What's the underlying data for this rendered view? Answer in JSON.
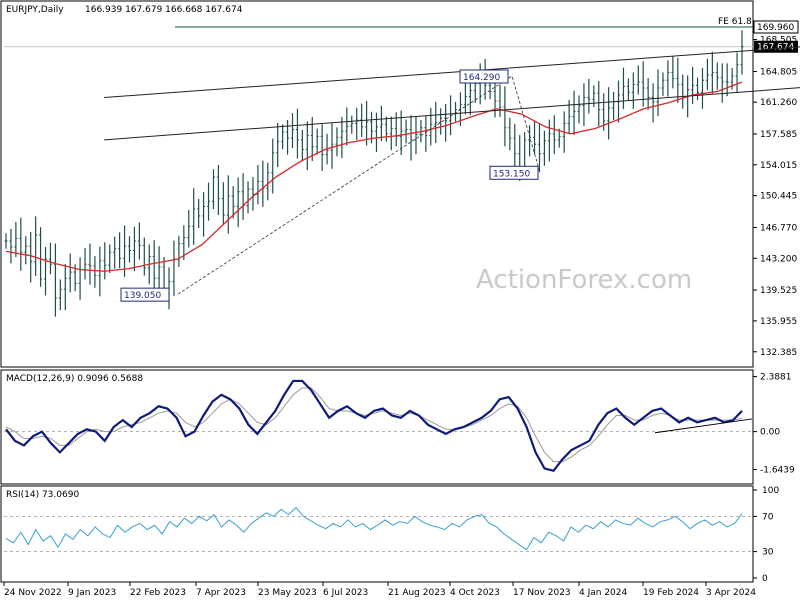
{
  "watermark": "ActionForex.com",
  "colors": {
    "price": "#1f4f4a",
    "ma": "#d42a2a",
    "macd": "#0f1b7a",
    "signal": "#9a9a9a",
    "rsi": "#3aa0d6",
    "channel": "#222222",
    "label_box": "#1f2a7a"
  },
  "chart_data": [
    {
      "type": "line",
      "panel": "price",
      "title": "EURJPY,Daily",
      "ohlc_readout": "166.939 167.679 166.668 167.674",
      "price_axis": {
        "ticks": [
          132.385,
          135.955,
          139.525,
          143.2,
          146.77,
          150.445,
          154.015,
          157.585,
          161.26,
          164.805,
          168.505
        ],
        "ylim": [
          131.2,
          171.0
        ]
      },
      "price_series": [
        145.2,
        144.5,
        145.5,
        143.9,
        144.6,
        142.8,
        145.9,
        140.8,
        143.1,
        142.5,
        138.6,
        139.6,
        140.9,
        141.6,
        140.3,
        141.9,
        142.5,
        142.3,
        141.2,
        142.9,
        142.4,
        143.9,
        144.3,
        143.2,
        144.6,
        144.1,
        145.2,
        144.7,
        142.1,
        143.4,
        140.9,
        142.2,
        139.7,
        140.5,
        143.1,
        144.9,
        145.6,
        146.9,
        148.9,
        148.1,
        149.2,
        149.8,
        152.6,
        150.1,
        148.2,
        150.4,
        149.2,
        150.9,
        149.3,
        151.2,
        150.6,
        152.1,
        151.3,
        153.1,
        155.4,
        156.7,
        157.8,
        157.1,
        158.1,
        156.9,
        155.8,
        157.4,
        156.1,
        157.3,
        155.2,
        155.7,
        156.4,
        157.2,
        157.9,
        158.5,
        158.8,
        159.2,
        158.4,
        159.0,
        157.9,
        158.4,
        158.7,
        157.6,
        158.2,
        157.3,
        157.9,
        158.1,
        156.9,
        157.5,
        158.3,
        157.4,
        158.7,
        158.9,
        159.4,
        159.1,
        159.9,
        160.4,
        161.0,
        161.9,
        162.6,
        163.4,
        164.1,
        163.2,
        162.5,
        161.4,
        160.7,
        158.3,
        157.1,
        155.3,
        153.8,
        156.9,
        157.2,
        156.4,
        155.3,
        156.8,
        157.6,
        156.9,
        157.3,
        158.8,
        159.6,
        160.2,
        160.9,
        161.8,
        161.6,
        162.3,
        160.4,
        159.1,
        160.6,
        161.3,
        162.1,
        163.1,
        162.4,
        163.3,
        163.6,
        162.9,
        161.8,
        161.3,
        162.9,
        163.8,
        164.7,
        164.0,
        163.3,
        161.9,
        162.7,
        163.2,
        162.4,
        163.8,
        164.4,
        164.7,
        164.1,
        163.6,
        163.6,
        164.3,
        165.6,
        167.674
      ],
      "series": [
        {
          "values": [
            144.0,
            143.5,
            142.6,
            141.9,
            141.7,
            142.0,
            142.6,
            143.1,
            144.8,
            147.5,
            150.2,
            152.6,
            154.4,
            155.8,
            156.6,
            157.1,
            157.4,
            157.9,
            158.6,
            159.6,
            160.5,
            159.9,
            158.4,
            157.6,
            158.2,
            159.3,
            160.5,
            161.2,
            162.1,
            162.5,
            163.6
          ]
        }
      ],
      "channel": {
        "upper": [
          [
            4,
            161.8
          ],
          [
            35,
            168.2
          ]
        ],
        "lower": [
          [
            4,
            156.9
          ],
          [
            35,
            163.5
          ]
        ]
      },
      "fib_level": {
        "label": "FE 61.8",
        "value": 169.96
      },
      "current_price": 167.674,
      "annotations": [
        {
          "label": "164.290",
          "value": 164.29
        },
        {
          "label": "153.150",
          "value": 153.15
        },
        {
          "label": "139.050",
          "value": 139.05
        }
      ]
    },
    {
      "type": "line",
      "panel": "macd",
      "title": "MACD(12,26,9) 0.9096 0.5688",
      "axis": {
        "ticks": [
          "2.3881",
          "0.00",
          "-1.6439"
        ],
        "ylim": [
          -2.1,
          2.5
        ]
      },
      "series": [
        {
          "values": [
            0.1,
            -0.4,
            -0.6,
            -0.2,
            0.0,
            -0.5,
            -0.9,
            -0.5,
            -0.1,
            0.1,
            0.0,
            -0.4,
            0.2,
            0.5,
            0.2,
            0.6,
            0.8,
            1.1,
            1.0,
            0.6,
            -0.2,
            0.0,
            0.7,
            1.3,
            1.6,
            1.4,
            1.0,
            0.3,
            -0.1,
            0.4,
            0.9,
            1.6,
            2.2,
            2.2,
            1.8,
            1.2,
            0.6,
            0.9,
            1.1,
            0.8,
            0.6,
            0.9,
            1.0,
            0.7,
            0.6,
            0.9,
            0.7,
            0.3,
            0.1,
            -0.1,
            0.1,
            0.2,
            0.4,
            0.6,
            0.9,
            1.4,
            1.5,
            1.0,
            0.2,
            -0.9,
            -1.6,
            -1.7,
            -1.2,
            -0.8,
            -0.6,
            -0.4,
            0.3,
            0.8,
            1.0,
            0.6,
            0.3,
            0.6,
            0.9,
            1.0,
            0.7,
            0.4,
            0.6,
            0.4,
            0.5,
            0.6,
            0.4,
            0.5,
            0.9
          ]
        },
        {
          "values": [
            0.2,
            0.0,
            -0.3,
            -0.3,
            -0.2,
            -0.3,
            -0.6,
            -0.6,
            -0.3,
            0.0,
            0.1,
            0.0,
            0.0,
            0.2,
            0.3,
            0.4,
            0.6,
            0.8,
            0.9,
            0.8,
            0.4,
            0.2,
            0.4,
            0.8,
            1.2,
            1.4,
            1.2,
            0.8,
            0.4,
            0.3,
            0.6,
            1.1,
            1.6,
            1.9,
            1.9,
            1.5,
            1.0,
            0.9,
            0.9,
            0.8,
            0.7,
            0.8,
            0.9,
            0.8,
            0.7,
            0.8,
            0.7,
            0.5,
            0.3,
            0.1,
            0.1,
            0.2,
            0.3,
            0.5,
            0.7,
            1.0,
            1.2,
            1.1,
            0.6,
            -0.2,
            -0.9,
            -1.3,
            -1.3,
            -1.1,
            -0.8,
            -0.6,
            -0.2,
            0.3,
            0.7,
            0.7,
            0.5,
            0.5,
            0.7,
            0.8,
            0.7,
            0.5,
            0.5,
            0.5,
            0.5,
            0.5,
            0.5,
            0.5,
            0.57
          ]
        }
      ]
    },
    {
      "type": "line",
      "panel": "rsi",
      "title": "RSI(14) 73.0690",
      "axis": {
        "ticks": [
          "100",
          "70",
          "30",
          "0"
        ],
        "ylim": [
          0,
          100
        ]
      },
      "series": [
        {
          "values": [
            45,
            40,
            52,
            38,
            55,
            42,
            48,
            35,
            50,
            44,
            55,
            48,
            58,
            50,
            46,
            60,
            52,
            58,
            62,
            55,
            60,
            50,
            64,
            58,
            68,
            62,
            70,
            65,
            72,
            58,
            66,
            60,
            52,
            62,
            68,
            74,
            70,
            78,
            72,
            80,
            70,
            65,
            60,
            56,
            62,
            58,
            66,
            58,
            62,
            55,
            60,
            66,
            60,
            64,
            62,
            70,
            64,
            60,
            58,
            55,
            62,
            58,
            66,
            70,
            72,
            62,
            58,
            50,
            44,
            38,
            32,
            46,
            40,
            52,
            48,
            42,
            58,
            52,
            60,
            56,
            64,
            58,
            66,
            62,
            60,
            68,
            62,
            58,
            64,
            66,
            70,
            64,
            56,
            62,
            66,
            60,
            64,
            58,
            62,
            73
          ]
        }
      ]
    }
  ],
  "x_axis_labels": [
    "24 Nov 2022",
    "9 Jan 2023",
    "22 Feb 2023",
    "7 Apr 2023",
    "23 May 2023",
    "6 Jul 2023",
    "21 Aug 2023",
    "4 Oct 2023",
    "17 Nov 2023",
    "4 Jan 2024",
    "19 Feb 2024",
    "3 Apr 2024"
  ]
}
